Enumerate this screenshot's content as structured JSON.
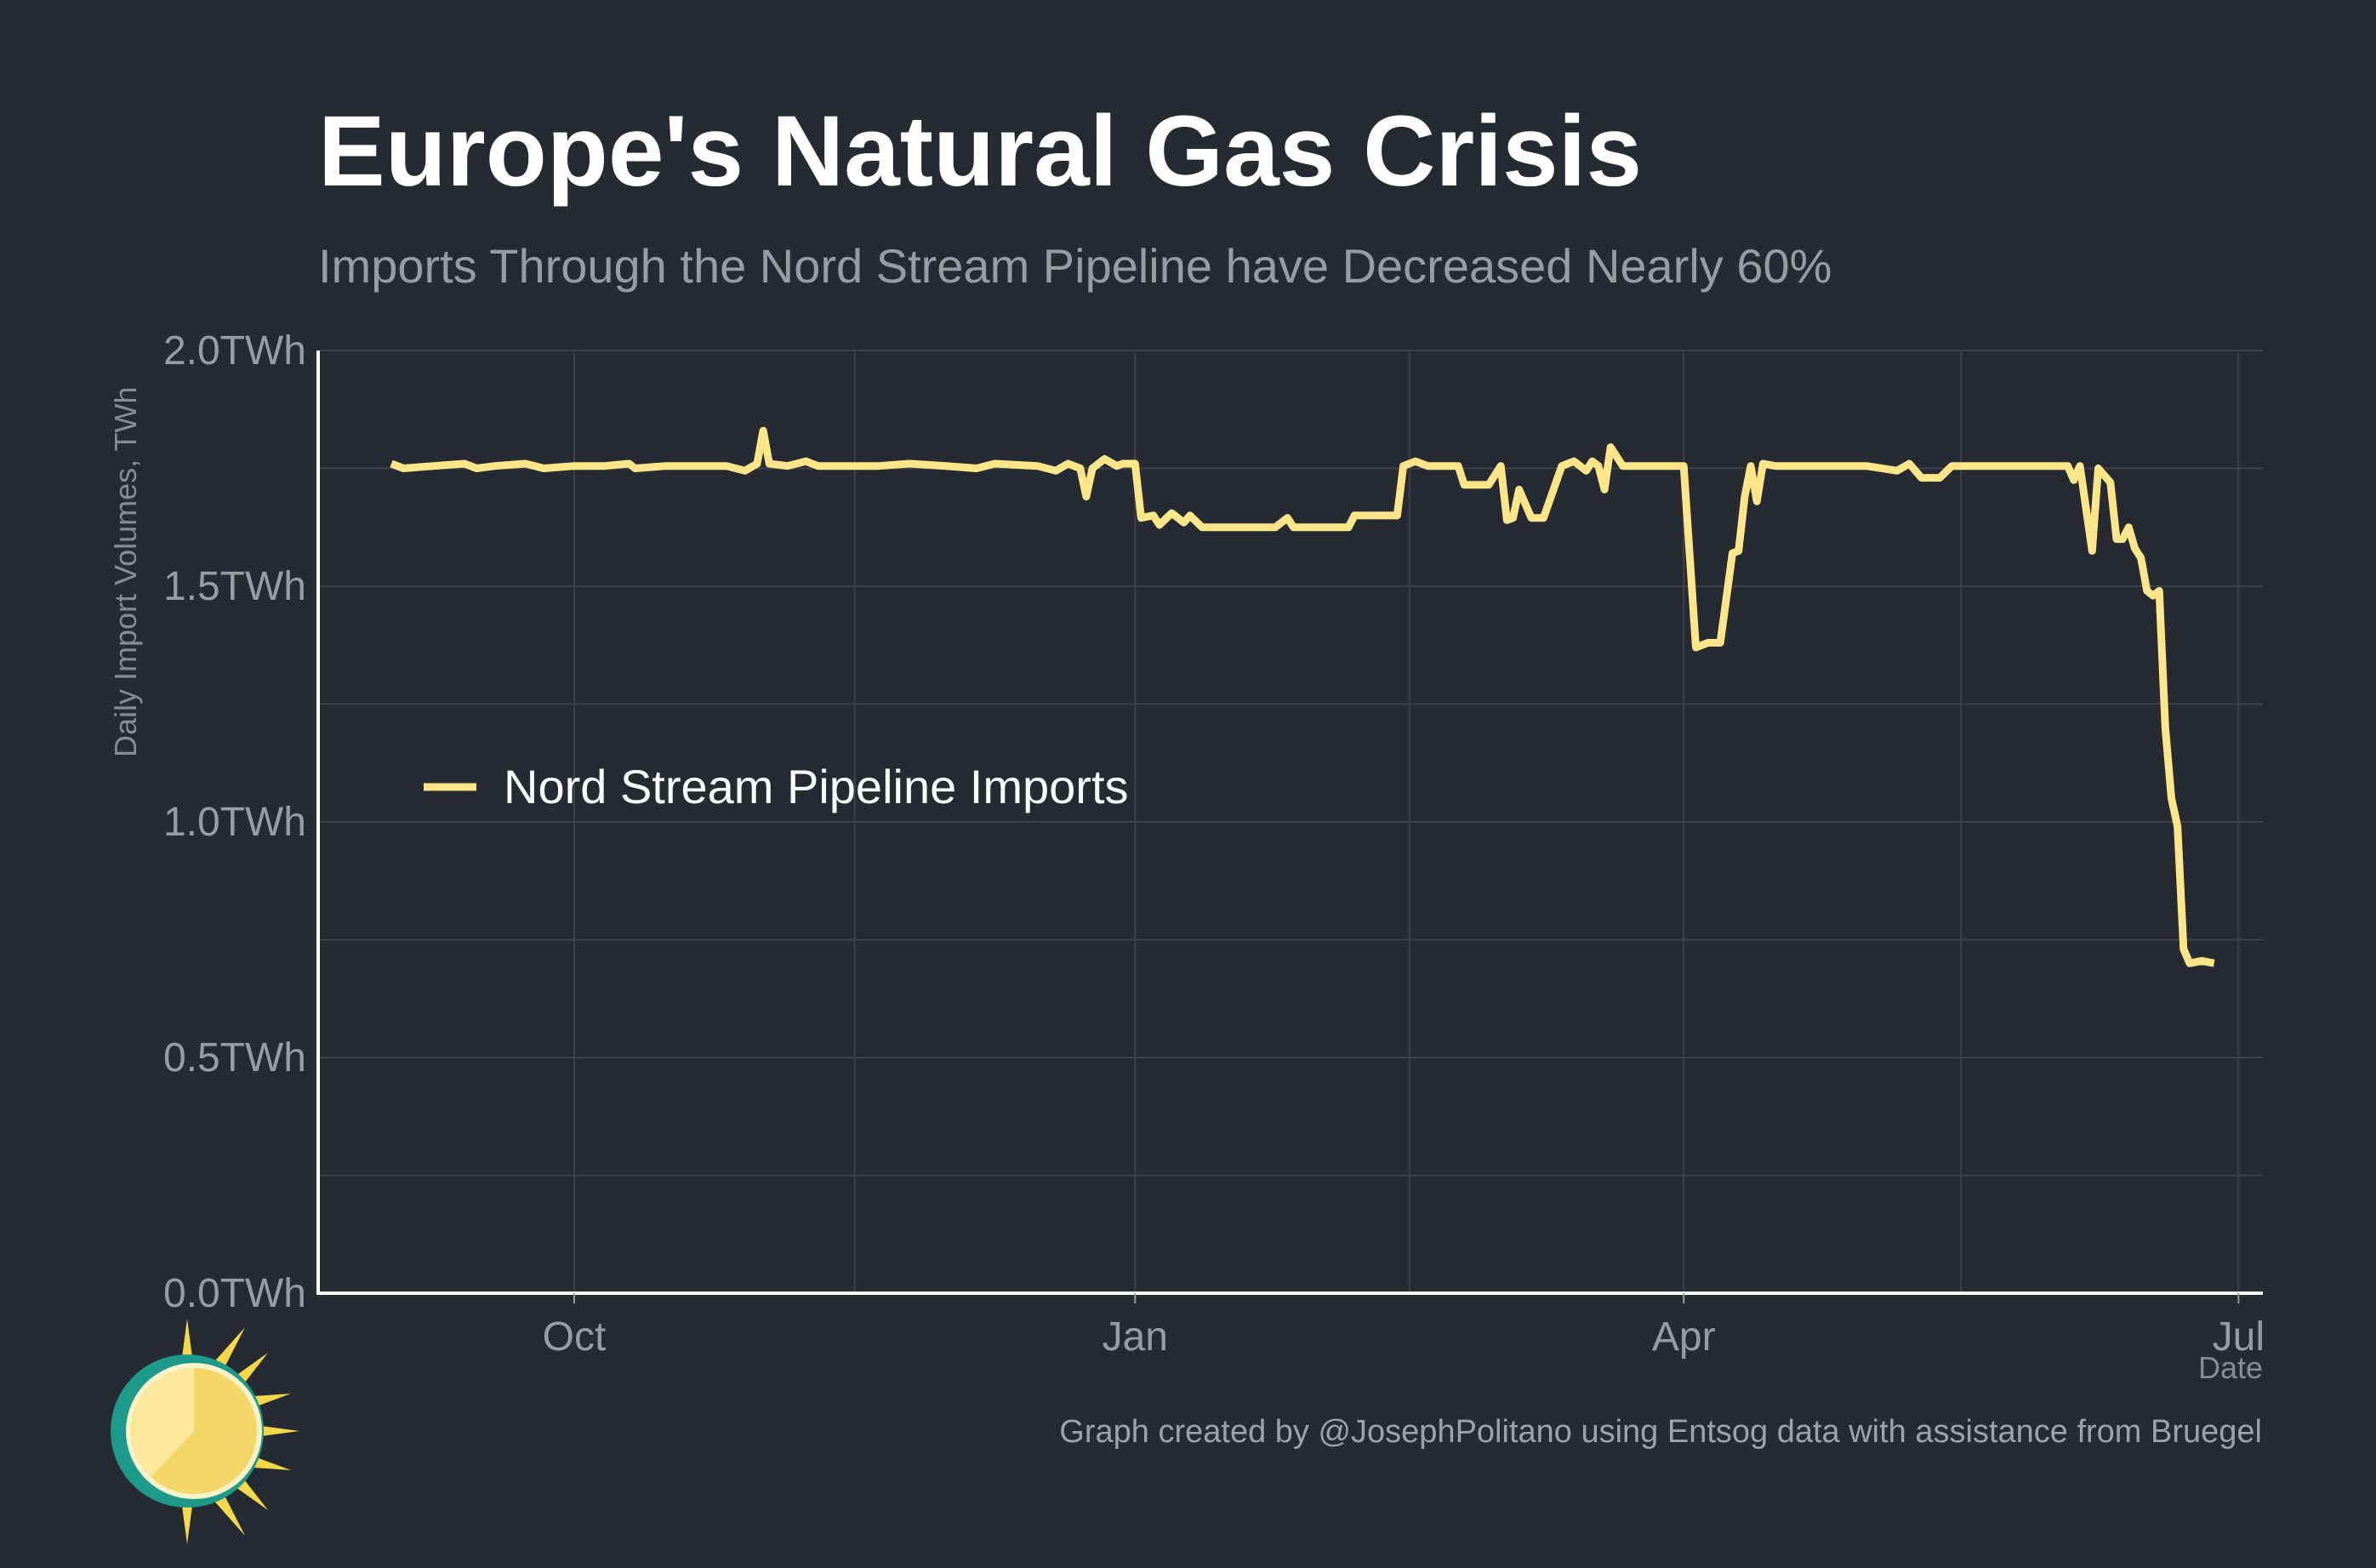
{
  "title": "Europe's Natural Gas Crisis",
  "subtitle": "Imports Through the Nord Stream Pipeline have Decreased Nearly 60%",
  "caption": "Graph created by @JosephPolitano using Entsog data with assistance from Bruegel",
  "colors": {
    "background": "#252a33",
    "line": "#fde58a",
    "grid": "#3d424b",
    "axis": "#ffffff",
    "muted": "#9a9ca2"
  },
  "icons": {
    "logo": "sun-icon"
  },
  "chart_data": {
    "type": "line",
    "title": "Europe's Natural Gas Crisis",
    "subtitle": "Imports Through the Nord Stream Pipeline have Decreased Nearly 60%",
    "xlabel": "Date",
    "ylabel": "Daily Import Volumes, TWh",
    "xlim": [
      "2021-08-20",
      "2022-07-05"
    ],
    "ylim": [
      0,
      2.0
    ],
    "x_ticks": [
      {
        "date": "2021-10-01",
        "label": "Oct"
      },
      {
        "date": "2022-01-01",
        "label": "Jan"
      },
      {
        "date": "2022-04-01",
        "label": "Apr"
      },
      {
        "date": "2022-07-01",
        "label": "Jul"
      }
    ],
    "y_ticks": [
      {
        "value": 0.0,
        "label": "0.0TWh"
      },
      {
        "value": 0.5,
        "label": "0.5TWh"
      },
      {
        "value": 1.0,
        "label": "1.0TWh"
      },
      {
        "value": 1.5,
        "label": "1.5TWh"
      },
      {
        "value": 2.0,
        "label": "2.0TWh"
      }
    ],
    "grid": true,
    "legend_position": "center-left",
    "series": [
      {
        "name": "Nord Stream Pipeline Imports",
        "color": "#fde58a",
        "points": [
          [
            "2021-09-01",
            1.76
          ],
          [
            "2021-09-03",
            1.75
          ],
          [
            "2021-09-08",
            1.755
          ],
          [
            "2021-09-13",
            1.76
          ],
          [
            "2021-09-15",
            1.75
          ],
          [
            "2021-09-18",
            1.755
          ],
          [
            "2021-09-23",
            1.76
          ],
          [
            "2021-09-26",
            1.75
          ],
          [
            "2021-10-01",
            1.755
          ],
          [
            "2021-10-06",
            1.755
          ],
          [
            "2021-10-10",
            1.76
          ],
          [
            "2021-10-11",
            1.75
          ],
          [
            "2021-10-16",
            1.755
          ],
          [
            "2021-10-21",
            1.755
          ],
          [
            "2021-10-26",
            1.755
          ],
          [
            "2021-10-29",
            1.745
          ],
          [
            "2021-10-31",
            1.76
          ],
          [
            "2021-11-01",
            1.83
          ],
          [
            "2021-11-02",
            1.76
          ],
          [
            "2021-11-05",
            1.755
          ],
          [
            "2021-11-08",
            1.765
          ],
          [
            "2021-11-10",
            1.755
          ],
          [
            "2021-11-20",
            1.755
          ],
          [
            "2021-11-25",
            1.76
          ],
          [
            "2021-12-01",
            1.755
          ],
          [
            "2021-12-06",
            1.75
          ],
          [
            "2021-12-09",
            1.76
          ],
          [
            "2021-12-16",
            1.755
          ],
          [
            "2021-12-19",
            1.745
          ],
          [
            "2021-12-21",
            1.76
          ],
          [
            "2021-12-23",
            1.75
          ],
          [
            "2021-12-24",
            1.69
          ],
          [
            "2021-12-25",
            1.75
          ],
          [
            "2021-12-27",
            1.77
          ],
          [
            "2021-12-29",
            1.755
          ],
          [
            "2021-12-30",
            1.76
          ],
          [
            "2022-01-01",
            1.76
          ],
          [
            "2022-01-02",
            1.645
          ],
          [
            "2022-01-04",
            1.65
          ],
          [
            "2022-01-05",
            1.63
          ],
          [
            "2022-01-07",
            1.655
          ],
          [
            "2022-01-09",
            1.635
          ],
          [
            "2022-01-10",
            1.65
          ],
          [
            "2022-01-12",
            1.625
          ],
          [
            "2022-01-19",
            1.625
          ],
          [
            "2022-01-24",
            1.625
          ],
          [
            "2022-01-26",
            1.645
          ],
          [
            "2022-01-27",
            1.625
          ],
          [
            "2022-02-05",
            1.625
          ],
          [
            "2022-02-06",
            1.65
          ],
          [
            "2022-02-13",
            1.65
          ],
          [
            "2022-02-14",
            1.755
          ],
          [
            "2022-02-16",
            1.765
          ],
          [
            "2022-02-18",
            1.755
          ],
          [
            "2022-02-23",
            1.755
          ],
          [
            "2022-02-24",
            1.715
          ],
          [
            "2022-02-28",
            1.715
          ],
          [
            "2022-03-02",
            1.755
          ],
          [
            "2022-03-03",
            1.64
          ],
          [
            "2022-03-04",
            1.645
          ],
          [
            "2022-03-05",
            1.705
          ],
          [
            "2022-03-07",
            1.645
          ],
          [
            "2022-03-09",
            1.645
          ],
          [
            "2022-03-12",
            1.755
          ],
          [
            "2022-03-14",
            1.765
          ],
          [
            "2022-03-16",
            1.745
          ],
          [
            "2022-03-17",
            1.765
          ],
          [
            "2022-03-18",
            1.755
          ],
          [
            "2022-03-19",
            1.705
          ],
          [
            "2022-03-20",
            1.795
          ],
          [
            "2022-03-22",
            1.755
          ],
          [
            "2022-03-29",
            1.755
          ],
          [
            "2022-04-01",
            1.755
          ],
          [
            "2022-04-03",
            1.37
          ],
          [
            "2022-04-05",
            1.38
          ],
          [
            "2022-04-07",
            1.38
          ],
          [
            "2022-04-09",
            1.57
          ],
          [
            "2022-04-10",
            1.575
          ],
          [
            "2022-04-11",
            1.69
          ],
          [
            "2022-04-12",
            1.755
          ],
          [
            "2022-04-13",
            1.68
          ],
          [
            "2022-04-14",
            1.76
          ],
          [
            "2022-04-16",
            1.755
          ],
          [
            "2022-04-21",
            1.755
          ],
          [
            "2022-04-26",
            1.755
          ],
          [
            "2022-05-01",
            1.755
          ],
          [
            "2022-05-06",
            1.745
          ],
          [
            "2022-05-08",
            1.76
          ],
          [
            "2022-05-10",
            1.73
          ],
          [
            "2022-05-13",
            1.73
          ],
          [
            "2022-05-15",
            1.755
          ],
          [
            "2022-05-20",
            1.755
          ],
          [
            "2022-05-25",
            1.755
          ],
          [
            "2022-06-01",
            1.755
          ],
          [
            "2022-06-03",
            1.755
          ],
          [
            "2022-06-04",
            1.725
          ],
          [
            "2022-06-05",
            1.755
          ],
          [
            "2022-06-07",
            1.575
          ],
          [
            "2022-06-08",
            1.75
          ],
          [
            "2022-06-10",
            1.72
          ],
          [
            "2022-06-11",
            1.6
          ],
          [
            "2022-06-12",
            1.6
          ],
          [
            "2022-06-13",
            1.625
          ],
          [
            "2022-06-14",
            1.58
          ],
          [
            "2022-06-15",
            1.56
          ],
          [
            "2022-06-16",
            1.49
          ],
          [
            "2022-06-17",
            1.48
          ],
          [
            "2022-06-18",
            1.49
          ],
          [
            "2022-06-19",
            1.2
          ],
          [
            "2022-06-20",
            1.05
          ],
          [
            "2022-06-21",
            0.99
          ],
          [
            "2022-06-22",
            0.73
          ],
          [
            "2022-06-23",
            0.7
          ],
          [
            "2022-06-25",
            0.705
          ],
          [
            "2022-06-27",
            0.7
          ]
        ]
      }
    ]
  }
}
